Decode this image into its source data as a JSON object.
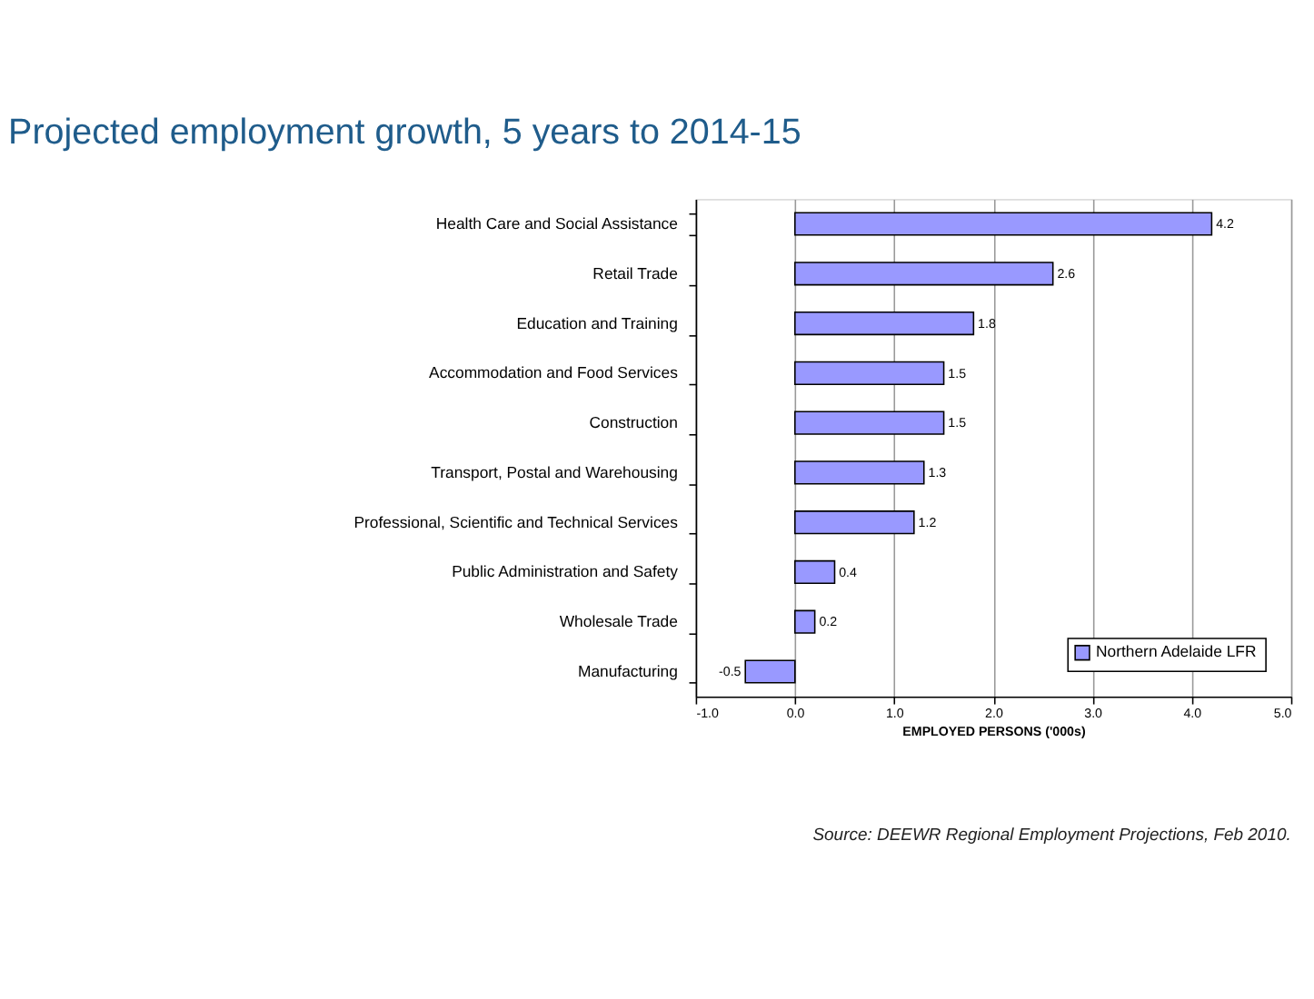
{
  "chart_data": {
    "type": "bar",
    "orientation": "horizontal",
    "title": "Projected employment growth, 5 years to 2014-15",
    "xlabel": "EMPLOYED PERSONS ('000s)",
    "categories": [
      "Health Care and Social Assistance",
      "Retail Trade",
      "Education and Training",
      "Accommodation and Food Services",
      "Construction",
      "Transport, Postal and Warehousing",
      "Professional, Scientific and Technical Services",
      "Public Administration and Safety",
      "Wholesale Trade",
      "Manufacturing"
    ],
    "series": [
      {
        "name": "Northern Adelaide LFR",
        "color": "#9999ff",
        "values": [
          4.2,
          2.6,
          1.8,
          1.5,
          1.5,
          1.3,
          1.2,
          0.4,
          0.2,
          -0.5
        ]
      }
    ],
    "xlim": [
      -1,
      5
    ],
    "xticks": [
      {
        "value": -1,
        "label": "-1.0"
      },
      {
        "value": 0,
        "label": "0.0"
      },
      {
        "value": 1,
        "label": "1.0"
      },
      {
        "value": 2,
        "label": "2.0"
      },
      {
        "value": 3,
        "label": "3.0"
      },
      {
        "value": 4,
        "label": "4.0"
      },
      {
        "value": 5,
        "label": "5.0"
      }
    ],
    "grid": "x",
    "legend": "bottom right",
    "data_labels": true,
    "annotations": [
      "Source: DEEWR Regional Employment Projections, Feb 2010."
    ]
  }
}
